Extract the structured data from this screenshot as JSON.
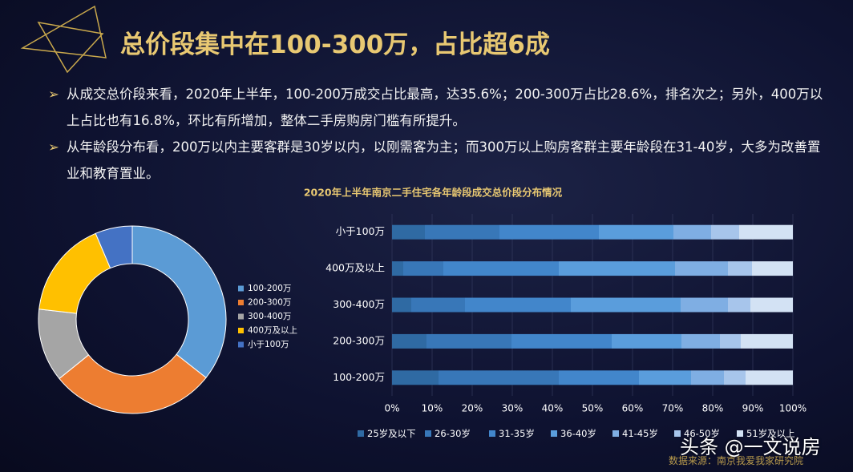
{
  "title": "总价段集中在100-300万，占比超6成",
  "bullets": [
    "从成交总价段来看，2020年上半年，100-200万成交占比最高，达35.6%；200-300万占比28.6%，排名次之；另外，400万以上占比也有16.8%，环比有所增加，整体二手房购房门槛有所提升。",
    "从年龄段分布看，200万以内主要客群是30岁以内，以刚需客为主；而300万以上购房客群主要年龄段在31-40岁，大多为改善置业和教育置业。"
  ],
  "source": "数据来源：南京我爱我家研究院",
  "watermark": "头条 @一文说房",
  "chart_data": [
    {
      "type": "pie",
      "donut": true,
      "legend": "right",
      "categories": [
        "100-200万",
        "200-300万",
        "300-400万",
        "400万及以上",
        "小于100万"
      ],
      "values": [
        35.6,
        28.6,
        12.6,
        16.8,
        6.4
      ],
      "colors": [
        "#5b9bd5",
        "#ed7d31",
        "#a5a5a5",
        "#ffc000",
        "#4472c4"
      ]
    },
    {
      "type": "bar",
      "orientation": "horizontal",
      "stacked": true,
      "legend": "bottom",
      "title": "2020年上半年南京二手住宅各年龄段成交总价段分布情况",
      "categories": [
        "小于100万",
        "400万及以上",
        "300-400万",
        "200-300万",
        "100-200万"
      ],
      "series": [
        {
          "name": "25岁及以下",
          "color": "#2f6aa3",
          "values": [
            8.2,
            2.8,
            4.8,
            8.6,
            11.6
          ]
        },
        {
          "name": "26-30岁",
          "color": "#3877b8",
          "values": [
            18.6,
            10,
            13.4,
            21.2,
            30
          ]
        },
        {
          "name": "31-35岁",
          "color": "#4286cb",
          "values": [
            24.8,
            28.8,
            26.4,
            25,
            20
          ]
        },
        {
          "name": "36-40岁",
          "color": "#5a9ddc",
          "values": [
            18.6,
            29,
            27.4,
            17.4,
            13
          ]
        },
        {
          "name": "41-45岁",
          "color": "#7faee3",
          "values": [
            9.4,
            13.2,
            11.8,
            9.6,
            8.2
          ]
        },
        {
          "name": "46-50岁",
          "color": "#a7c5eb",
          "values": [
            7,
            6,
            5.6,
            5.2,
            5.4
          ]
        },
        {
          "name": "51岁及以上",
          "color": "#d3e2f4",
          "values": [
            13.4,
            10.2,
            10.6,
            13,
            11.8
          ]
        }
      ],
      "xlim": [
        0,
        100
      ],
      "xticks": [
        {
          "value": 0,
          "label": "0%"
        },
        {
          "value": 10,
          "label": "10%"
        },
        {
          "value": 20,
          "label": "20%"
        },
        {
          "value": 30,
          "label": "30%"
        },
        {
          "value": 40,
          "label": "40%"
        },
        {
          "value": 50,
          "label": "50%"
        },
        {
          "value": 60,
          "label": "60%"
        },
        {
          "value": 70,
          "label": "70%"
        },
        {
          "value": 80,
          "label": "80%"
        },
        {
          "value": 90,
          "label": "90%"
        },
        {
          "value": 100,
          "label": "100%"
        }
      ]
    }
  ]
}
